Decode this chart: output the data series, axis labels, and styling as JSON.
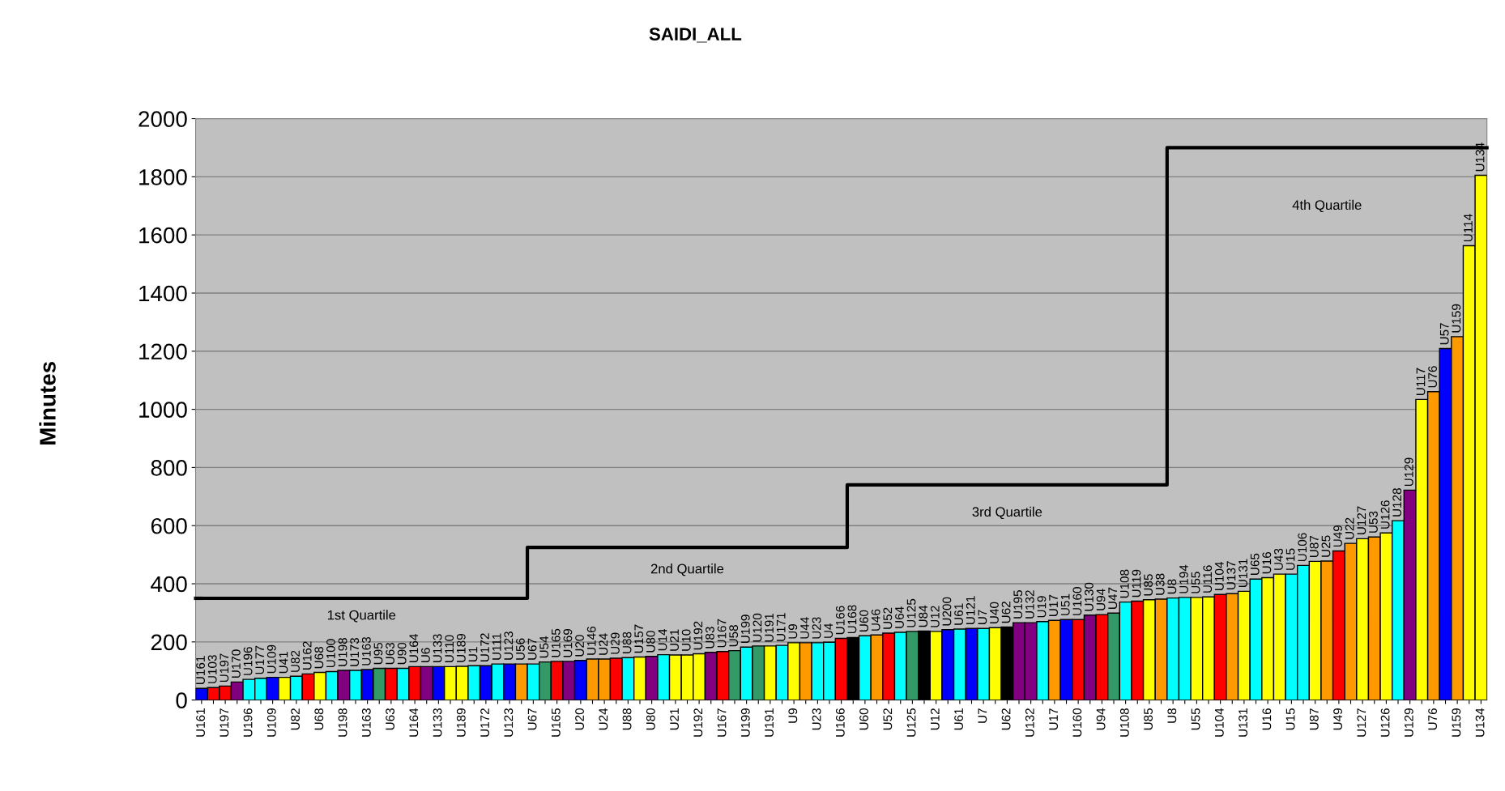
{
  "chart_data": {
    "type": "bar",
    "title": "SAIDI_ALL",
    "ylabel": "Minutes",
    "categories": [
      "U161",
      null,
      "U197",
      null,
      "U196",
      null,
      "U109",
      null,
      "U82",
      null,
      "U68",
      null,
      "U198",
      null,
      "U163",
      null,
      "U63",
      null,
      "U164",
      null,
      "U133",
      null,
      "U189",
      null,
      "U172",
      null,
      "U123",
      null,
      "U67",
      null,
      "U165",
      null,
      "U20",
      null,
      "U24",
      null,
      "U88",
      null,
      "U80",
      null,
      "U21",
      null,
      "U192",
      null,
      "U167",
      null,
      "U199",
      null,
      "U191",
      null,
      "U9",
      null,
      "U23",
      null,
      "U166",
      null,
      "U60",
      null,
      "U52",
      null,
      "U125",
      null,
      "U12",
      null,
      "U61",
      null,
      "U7",
      null,
      "U62",
      null,
      "U132",
      null,
      "U17",
      null,
      "U160",
      null,
      "U94",
      null,
      "U108",
      null,
      "U85",
      null,
      "U8",
      null,
      "U55",
      null,
      "U104",
      null,
      "U131",
      null,
      "U16",
      null,
      "U15",
      null,
      "U87",
      null,
      "U49",
      null,
      "U127",
      null,
      "U126",
      null,
      "U129",
      null,
      "U76",
      null,
      "U159",
      null,
      "U134"
    ],
    "series": [
      {
        "values": [
          40,
          43,
          48,
          62,
          71,
          75,
          78,
          78,
          82,
          90,
          95,
          98,
          102,
          102,
          105,
          109,
          109,
          109,
          115,
          115,
          115,
          115,
          116,
          118,
          118,
          124,
          124,
          124,
          124,
          131,
          133,
          133,
          136,
          141,
          141,
          144,
          146,
          148,
          150,
          156,
          155,
          155,
          159,
          164,
          167,
          170,
          182,
          186,
          186,
          188,
          197,
          197,
          197,
          199,
          212,
          215,
          221,
          224,
          230,
          233,
          236,
          237,
          236,
          242,
          244,
          246,
          246,
          249,
          251,
          266,
          266,
          270,
          274,
          277,
          277,
          292,
          294,
          299,
          337,
          340,
          345,
          347,
          351,
          353,
          353,
          355,
          363,
          366,
          374,
          416,
          421,
          433,
          433,
          463,
          477,
          478,
          513,
          539,
          555,
          561,
          575,
          617,
          722,
          1034,
          1061,
          1209,
          1250,
          1563,
          1805
        ],
        "value_labels": [
          "U161",
          "U103",
          "U197",
          "U170",
          "U196",
          "U177",
          "U109",
          "U41",
          "U82",
          "U162",
          "U68",
          "U100",
          "U198",
          "U173",
          "U163",
          "U95",
          "U63",
          "U90",
          "U164",
          "U6",
          "U133",
          "U110",
          "U189",
          "U1",
          "U172",
          "U111",
          "U123",
          "U56",
          "U67",
          "U54",
          "U165",
          "U169",
          "U20",
          "U146",
          "U24",
          "U29",
          "U88",
          "U157",
          "U80",
          "U14",
          "U21",
          "U10",
          "U192",
          "U83",
          "U167",
          "U58",
          "U199",
          "U120",
          "U191",
          "U171",
          "U9",
          "U44",
          "U23",
          "U4",
          "U166",
          "U168",
          "U60",
          "U46",
          "U52",
          "U64",
          "U125",
          "U84",
          "U12",
          "U200",
          "U61",
          "U121",
          "U7",
          "U40",
          "U62",
          "U195",
          "U132",
          "U19",
          "U17",
          "U51",
          "U160",
          "U130",
          "U94",
          "U47",
          "U108",
          "U119",
          "U85",
          "U38",
          "U8",
          "U194",
          "U55",
          "U116",
          "U104",
          "U137",
          "U131",
          "U65",
          "U16",
          "U43",
          "U15",
          "U106",
          "U87",
          "U25",
          "U49",
          "U22",
          "U127",
          "U53",
          "U126",
          "U128",
          "U129",
          "U117",
          "U76",
          "U57",
          "U159",
          "U114",
          "U134"
        ],
        "colors": [
          "#0000ff",
          "#ff0000",
          "#ff0000",
          "#800080",
          "#00ffff",
          "#00ffff",
          "#0000ff",
          "#ffff00",
          "#00ffff",
          "#ff0000",
          "#ffff00",
          "#00ffff",
          "#800080",
          "#00ffff",
          "#0000ff",
          "#339966",
          "#ff0000",
          "#00ffff",
          "#ff0000",
          "#800080",
          "#0000ff",
          "#ffff00",
          "#ffff00",
          "#00ffff",
          "#0000ff",
          "#00ffff",
          "#0000ff",
          "#ff9900",
          "#00ffff",
          "#339966",
          "#ff0000",
          "#800080",
          "#0000ff",
          "#ff9900",
          "#ff9900",
          "#ff0000",
          "#00ffff",
          "#ffff00",
          "#800080",
          "#00ffff",
          "#ffff00",
          "#ffff00",
          "#ffff00",
          "#800080",
          "#ff0000",
          "#339966",
          "#00ffff",
          "#339966",
          "#ffff00",
          "#00ffff",
          "#ffff00",
          "#ff9900",
          "#00ffff",
          "#00ffff",
          "#ff0000",
          "#000000",
          "#00ffff",
          "#ff9900",
          "#ff0000",
          "#00ffff",
          "#339966",
          "#000000",
          "#ffff00",
          "#0000ff",
          "#00ffff",
          "#0000ff",
          "#00ffff",
          "#ffff00",
          "#000000",
          "#800080",
          "#800080",
          "#00ffff",
          "#ff9900",
          "#0000ff",
          "#ff0000",
          "#800080",
          "#ff0000",
          "#339966",
          "#00ffff",
          "#ff0000",
          "#ffff00",
          "#ff9900",
          "#00ffff",
          "#00ffff",
          "#ffff00",
          "#ffff00",
          "#ff0000",
          "#ff9900",
          "#ffff00",
          "#00ffff",
          "#ffff00",
          "#ffff00",
          "#00ffff",
          "#00ffff",
          "#ffff00",
          "#ff9900",
          "#ff0000",
          "#ff9900",
          "#ffff00",
          "#ff9900",
          "#ffff00",
          "#00ffff",
          "#800080",
          "#ffff00",
          "#ff9900",
          "#0000ff",
          "#ff9900",
          "#ffff00",
          "#ffff00"
        ]
      },
      {
        "type": "step",
        "color": "#000000",
        "values": [
          350,
          350,
          350,
          350,
          350,
          350,
          350,
          350,
          350,
          350,
          350,
          350,
          350,
          350,
          350,
          350,
          350,
          350,
          350,
          350,
          350,
          350,
          350,
          350,
          350,
          350,
          350,
          350,
          525,
          525,
          525,
          525,
          525,
          525,
          525,
          525,
          525,
          525,
          525,
          525,
          525,
          525,
          525,
          525,
          525,
          525,
          525,
          525,
          525,
          525,
          525,
          525,
          525,
          525,
          525,
          740,
          740,
          740,
          740,
          740,
          740,
          740,
          740,
          740,
          740,
          740,
          740,
          740,
          740,
          740,
          740,
          740,
          740,
          740,
          740,
          740,
          740,
          740,
          740,
          740,
          740,
          740,
          1900,
          1900,
          1900,
          1900,
          1900,
          1900,
          1900,
          1900,
          1900,
          1900,
          1900,
          1900,
          1900,
          1900,
          1900,
          1900,
          1900,
          1900,
          1900,
          1900,
          1900,
          1900,
          1900,
          1900,
          1900,
          1900,
          1900
        ]
      }
    ],
    "annotations": [
      "1st Quartile",
      "2nd Quartile",
      "3rd Quartile",
      "4th Quartile"
    ],
    "ylim": [
      0,
      2000
    ],
    "yticks": [
      0,
      200,
      400,
      600,
      800,
      1000,
      1200,
      1400,
      1600,
      1800,
      2000
    ],
    "grid": "y"
  }
}
